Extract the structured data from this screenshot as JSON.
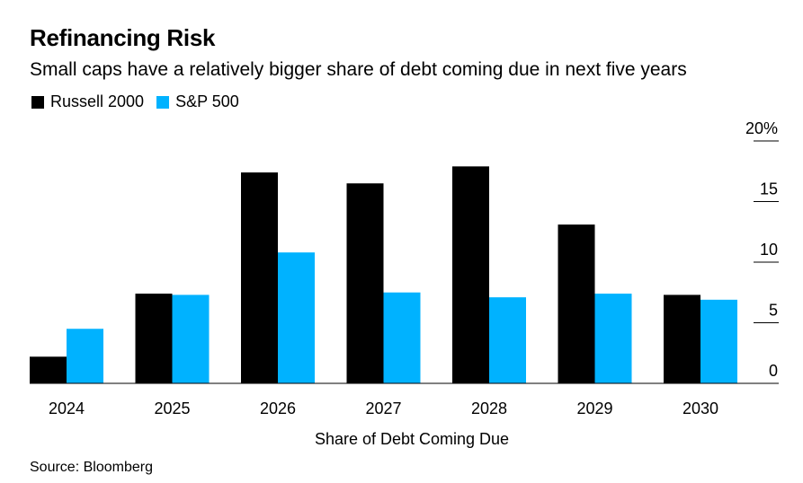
{
  "title": "Refinancing Risk",
  "subtitle": "Small caps have a relatively bigger share of debt coming due in next five years",
  "source": "Source: Bloomberg",
  "colors": {
    "russell": "#000000",
    "sp500": "#00b2ff",
    "gridline": "#000000"
  },
  "chart_data": {
    "type": "bar",
    "title": "Refinancing Risk",
    "xlabel": "Share of Debt Coming Due",
    "ylabel": "",
    "categories": [
      "2024",
      "2025",
      "2026",
      "2027",
      "2028",
      "2029",
      "2030"
    ],
    "series": [
      {
        "name": "Russell 2000",
        "values": [
          2.2,
          7.4,
          17.4,
          16.5,
          17.9,
          13.1,
          7.3
        ]
      },
      {
        "name": "S&P 500",
        "values": [
          4.5,
          7.3,
          10.8,
          7.5,
          7.1,
          7.4,
          6.9
        ]
      }
    ],
    "ylim": [
      0,
      20
    ],
    "yticks": [
      0,
      5,
      10,
      15,
      20
    ],
    "ytick_labels": [
      "0",
      "5",
      "10",
      "15",
      "20%"
    ],
    "legend": "top-left",
    "grid": false
  }
}
